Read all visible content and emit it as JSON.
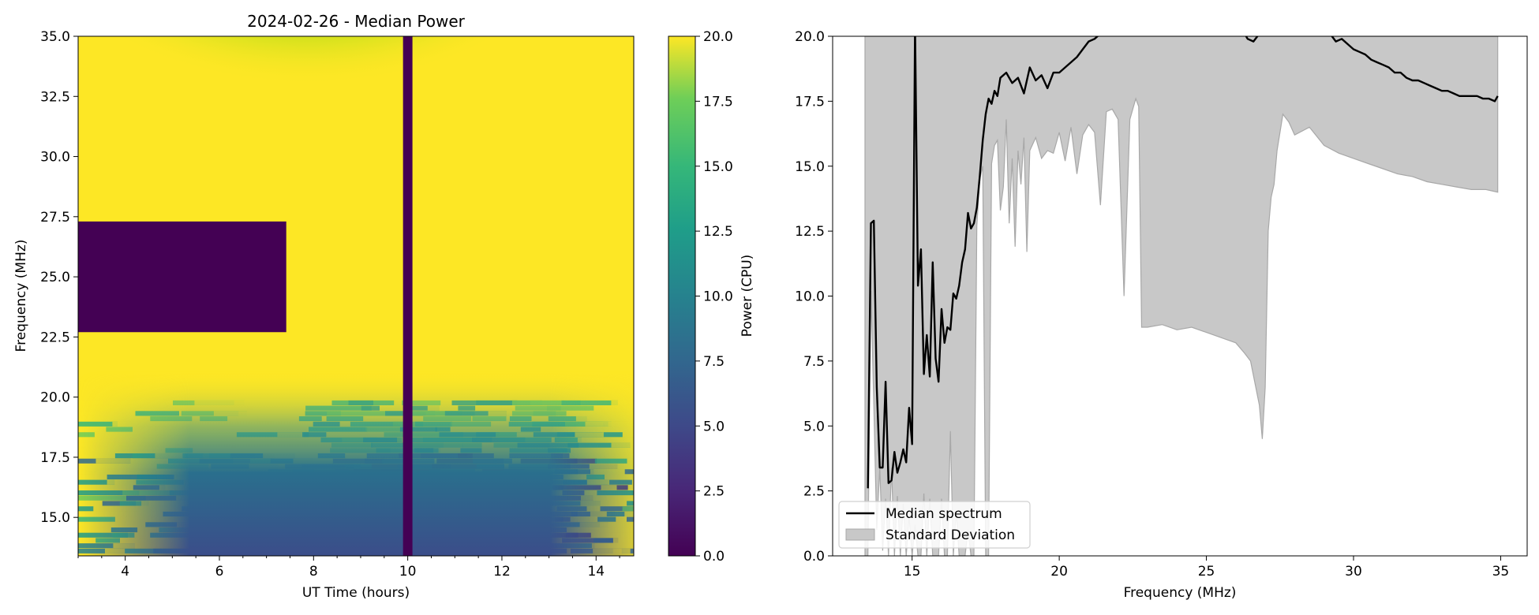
{
  "chart_data": [
    {
      "type": "heatmap",
      "title": "2024-02-26 - Median Power",
      "xlabel": "UT Time (hours)",
      "ylabel": "Frequency (MHz)",
      "xlim": [
        3.0,
        14.8
      ],
      "ylim": [
        13.4,
        35.0
      ],
      "xticks": [
        "4",
        "6",
        "8",
        "10",
        "12",
        "14"
      ],
      "xtick_values": [
        4,
        6,
        8,
        10,
        12,
        14
      ],
      "yticks": [
        "15.0",
        "17.5",
        "20.0",
        "22.5",
        "25.0",
        "27.5",
        "30.0",
        "32.5",
        "35.0"
      ],
      "ytick_values": [
        15,
        17.5,
        20,
        22.5,
        25,
        27.5,
        30,
        32.5,
        35
      ],
      "colormap": "viridis",
      "colorbar": {
        "label": "Power (CPU)",
        "range": [
          0,
          20
        ],
        "ticks": [
          "0.0",
          "2.5",
          "5.0",
          "7.5",
          "10.0",
          "12.5",
          "15.0",
          "17.5",
          "20.0"
        ],
        "tick_values": [
          0,
          2.5,
          5,
          7.5,
          10,
          12.5,
          15,
          17.5,
          20
        ]
      },
      "masked_regions": [
        {
          "x": [
            3.0,
            7.42
          ],
          "y": [
            22.7,
            27.3
          ],
          "value": 0
        },
        {
          "x": [
            9.9,
            10.1
          ],
          "y": [
            13.4,
            35.0
          ],
          "value": 0
        }
      ]
    },
    {
      "type": "line",
      "title": "",
      "xlabel": "Frequency (MHz)",
      "ylabel": "",
      "xlim": [
        12.3,
        35.9
      ],
      "ylim": [
        0,
        20
      ],
      "xticks": [
        "15",
        "20",
        "25",
        "30",
        "35"
      ],
      "xtick_values": [
        15,
        20,
        25,
        30,
        35
      ],
      "yticks": [
        "0.0",
        "2.5",
        "5.0",
        "7.5",
        "10.0",
        "12.5",
        "15.0",
        "17.5",
        "20.0"
      ],
      "ytick_values": [
        0,
        2.5,
        5,
        7.5,
        10,
        12.5,
        15,
        17.5,
        20
      ],
      "legend": {
        "position": "lower-left",
        "entries": [
          "Median spectrum",
          "Standard Deviation"
        ]
      },
      "series": [
        {
          "name": "Median spectrum",
          "color": "#000000",
          "x": [
            13.5,
            13.6,
            13.7,
            13.8,
            13.9,
            14.0,
            14.1,
            14.2,
            14.3,
            14.4,
            14.5,
            14.6,
            14.7,
            14.8,
            14.9,
            15.0,
            15.1,
            15.2,
            15.3,
            15.4,
            15.5,
            15.6,
            15.7,
            15.8,
            15.9,
            16.0,
            16.1,
            16.2,
            16.3,
            16.4,
            16.5,
            16.6,
            16.7,
            16.8,
            16.9,
            17.0,
            17.1,
            17.2,
            17.3,
            17.4,
            17.5,
            17.6,
            17.7,
            17.8,
            17.9,
            18.0,
            18.2,
            18.4,
            18.6,
            18.8,
            19.0,
            19.2,
            19.4,
            19.6,
            19.8,
            20.0,
            20.2,
            20.4,
            20.6,
            20.8,
            21.0,
            21.2,
            21.4,
            26.3,
            26.4,
            26.6,
            26.8,
            29.2,
            29.4,
            29.6,
            29.8,
            30.0,
            30.2,
            30.4,
            30.6,
            30.8,
            31.0,
            31.2,
            31.4,
            31.6,
            31.8,
            32.0,
            32.2,
            32.4,
            32.6,
            32.8,
            33.0,
            33.2,
            33.4,
            33.6,
            33.8,
            34.0,
            34.2,
            34.4,
            34.6,
            34.8,
            34.9
          ],
          "y": [
            2.6,
            12.8,
            12.9,
            6.5,
            3.4,
            3.4,
            6.7,
            2.8,
            2.9,
            4.0,
            3.2,
            3.6,
            4.1,
            3.6,
            5.7,
            4.3,
            20.5,
            10.4,
            11.8,
            7.0,
            8.5,
            6.9,
            11.3,
            7.6,
            6.7,
            9.5,
            8.2,
            8.8,
            8.7,
            10.1,
            9.9,
            10.4,
            11.3,
            11.8,
            13.2,
            12.6,
            12.8,
            13.4,
            14.6,
            16.0,
            17.0,
            17.6,
            17.4,
            17.9,
            17.7,
            18.4,
            18.6,
            18.2,
            18.4,
            17.8,
            18.8,
            18.3,
            18.5,
            18.0,
            18.6,
            18.6,
            18.8,
            19.0,
            19.2,
            19.5,
            19.8,
            19.9,
            20.1,
            20.1,
            19.9,
            19.8,
            20.1,
            20.1,
            19.8,
            19.9,
            19.7,
            19.5,
            19.4,
            19.3,
            19.1,
            19.0,
            18.9,
            18.8,
            18.6,
            18.6,
            18.4,
            18.3,
            18.3,
            18.2,
            18.1,
            18.0,
            17.9,
            17.9,
            17.8,
            17.7,
            17.7,
            17.7,
            17.7,
            17.6,
            17.6,
            17.5,
            17.7
          ]
        },
        {
          "name": "Standard Deviation",
          "color": "#c8c8c8",
          "x": [
            13.4,
            13.5,
            13.6,
            13.7,
            13.8,
            13.9,
            14.0,
            14.1,
            14.2,
            14.3,
            14.4,
            14.5,
            14.6,
            14.7,
            14.8,
            14.9,
            15.0,
            15.1,
            15.2,
            15.3,
            15.4,
            15.5,
            15.6,
            15.7,
            15.8,
            15.9,
            16.0,
            16.1,
            16.2,
            16.3,
            16.4,
            16.5,
            16.6,
            16.7,
            16.8,
            16.9,
            17.0,
            17.1,
            17.2,
            17.3,
            17.4,
            17.5,
            17.6,
            17.7,
            17.8,
            17.9,
            18.0,
            18.1,
            18.2,
            18.3,
            18.4,
            18.5,
            18.6,
            18.7,
            18.8,
            18.9,
            19.0,
            19.2,
            19.4,
            19.6,
            19.8,
            20.0,
            20.2,
            20.4,
            20.6,
            20.8,
            21.0,
            21.2,
            21.4,
            21.6,
            21.8,
            22.0,
            22.2,
            22.4,
            22.6,
            22.7,
            22.8,
            23.0,
            23.5,
            24.0,
            24.5,
            25.0,
            25.5,
            26.0,
            26.3,
            26.5,
            26.8,
            26.9,
            27.0,
            27.1,
            27.2,
            27.3,
            27.4,
            27.6,
            27.8,
            28.0,
            28.5,
            29.0,
            29.5,
            30.0,
            30.5,
            31.0,
            31.5,
            32.0,
            32.5,
            33.0,
            33.5,
            34.0,
            34.5,
            34.9
          ],
          "lower": [
            0.0,
            0.0,
            10.2,
            5.8,
            1.0,
            3.4,
            0.2,
            2.2,
            0.0,
            3.4,
            0.0,
            2.3,
            0.0,
            2.0,
            0.0,
            1.5,
            0.0,
            1.2,
            0.0,
            0.0,
            2.4,
            0.0,
            2.2,
            0.0,
            0.0,
            0.0,
            2.2,
            0.0,
            0.0,
            4.8,
            0.0,
            1.7,
            0.0,
            0.0,
            0.0,
            1.0,
            0.0,
            0.0,
            12.7,
            14.5,
            15.0,
            0.0,
            0.0,
            15.1,
            15.8,
            16.0,
            13.3,
            14.2,
            16.8,
            12.8,
            15.3,
            11.9,
            15.6,
            14.3,
            16.1,
            11.7,
            15.6,
            16.1,
            15.3,
            15.6,
            15.5,
            16.3,
            15.2,
            16.5,
            14.7,
            16.2,
            16.6,
            16.3,
            13.5,
            17.1,
            17.2,
            16.8,
            10.0,
            16.8,
            17.6,
            17.3,
            8.8,
            8.8,
            8.9,
            8.7,
            8.8,
            8.6,
            8.4,
            8.2,
            7.8,
            7.5,
            5.8,
            4.5,
            6.5,
            12.5,
            13.8,
            14.3,
            15.6,
            17.0,
            16.7,
            16.2,
            16.5,
            15.8,
            15.5,
            15.3,
            15.1,
            14.9,
            14.7,
            14.6,
            14.4,
            14.3,
            14.2,
            14.1,
            14.1,
            14.0
          ],
          "upper": [
            20,
            20,
            20,
            20,
            20,
            20,
            20,
            20,
            20,
            20,
            20,
            20,
            20,
            20,
            20,
            20,
            20,
            20,
            20,
            20,
            20,
            20,
            20,
            20,
            20,
            20,
            20,
            20,
            20,
            20,
            20,
            20,
            20,
            20,
            20,
            20,
            20,
            20,
            20,
            20,
            20,
            20,
            20,
            20,
            20,
            20,
            20,
            20,
            20,
            20,
            20,
            20,
            20,
            20,
            20,
            20,
            20,
            20,
            20,
            20,
            20,
            20,
            20,
            20,
            20,
            20,
            20,
            20,
            20,
            20,
            20,
            20,
            20,
            20,
            20,
            20,
            20,
            20,
            20,
            20,
            20,
            20,
            20,
            20,
            20,
            20,
            20,
            20,
            20,
            20,
            20,
            20,
            20,
            20,
            20,
            20,
            20,
            20,
            20,
            20,
            20,
            20,
            20,
            20,
            20,
            20,
            20,
            20,
            20,
            20
          ]
        }
      ]
    }
  ]
}
